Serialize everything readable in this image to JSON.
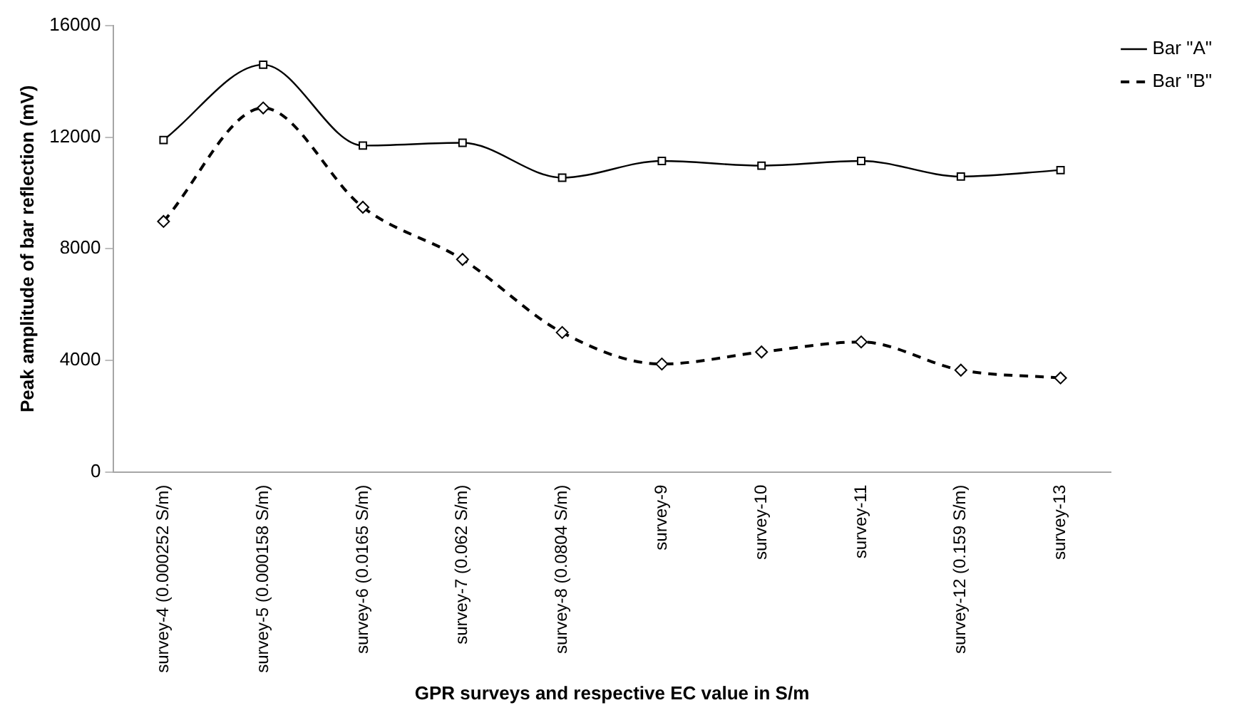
{
  "chart_data": {
    "type": "line",
    "xlabel": "GPR surveys and respective EC value in S/m",
    "ylabel": "Peak amplitude of bar reflection (mV)",
    "categories": [
      "survey-4 (0.000252 S/m)",
      "survey-5 (0.000158 S/m)",
      "survey-6 (0.0165 S/m)",
      "survey-7 (0.062 S/m)",
      "survey-8 (0.0804 S/m)",
      "survey-9",
      "survey-10",
      "survey-11",
      "survey-12 (0.159 S/m)",
      "survey-13"
    ],
    "series": [
      {
        "name": "Bar \"A\"",
        "color": "#000000",
        "marker": "square",
        "line_style": "solid",
        "values": [
          11900,
          14600,
          11700,
          11800,
          10550,
          11150,
          10980,
          11150,
          10590,
          10820
        ]
      },
      {
        "name": "Bar \"B\"",
        "color": "#000000",
        "marker": "diamond",
        "line_style": "dashed",
        "values": [
          8980,
          13050,
          9490,
          7620,
          5000,
          3870,
          4300,
          4660,
          3650,
          3370
        ]
      }
    ],
    "ylim": [
      0,
      16000
    ],
    "yticks": [
      0,
      4000,
      8000,
      12000,
      16000
    ],
    "grid": false,
    "legend": "top right"
  }
}
